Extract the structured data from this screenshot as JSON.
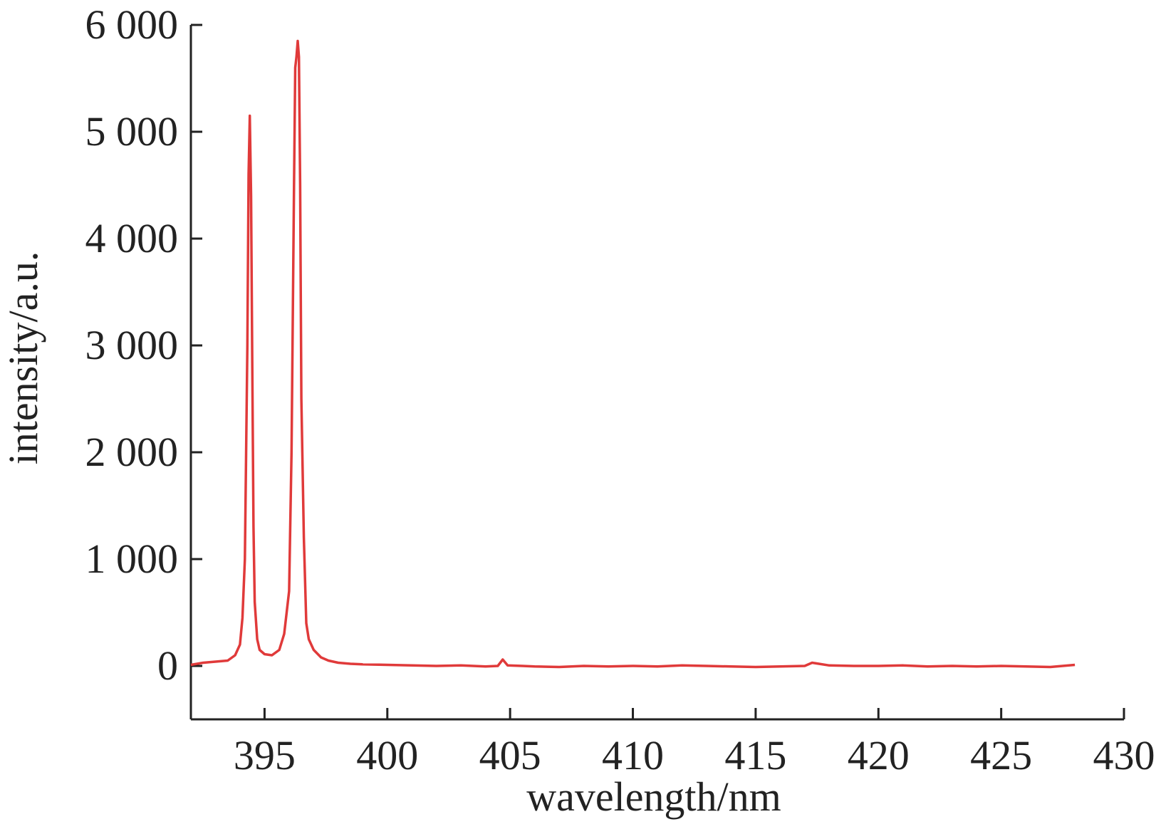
{
  "chart_data": {
    "type": "line",
    "title": "",
    "xlabel": "wavelength/nm",
    "ylabel": "intensity/a.u.",
    "xlim": [
      392,
      430
    ],
    "ylim": [
      -500,
      6000
    ],
    "xticks": [
      395,
      400,
      405,
      410,
      415,
      420,
      425,
      430
    ],
    "xtick_labels": [
      "395",
      "400",
      "405",
      "410",
      "415",
      "420",
      "425",
      "430"
    ],
    "yticks": [
      0,
      1000,
      2000,
      3000,
      4000,
      5000,
      6000
    ],
    "ytick_labels": [
      "0",
      "1 000",
      "2 000",
      "3 000",
      "4 000",
      "5 000",
      "6 000"
    ],
    "grid": false,
    "legend": "none",
    "series": [
      {
        "color": "#e03a3a",
        "x": [
          392.0,
          392.5,
          393.0,
          393.5,
          393.8,
          394.0,
          394.1,
          394.2,
          394.3,
          394.35,
          394.4,
          394.45,
          394.5,
          394.55,
          394.6,
          394.7,
          394.8,
          395.0,
          395.3,
          395.6,
          395.8,
          396.0,
          396.1,
          396.2,
          396.25,
          396.3,
          396.35,
          396.4,
          396.45,
          396.5,
          396.6,
          396.7,
          396.8,
          397.0,
          397.3,
          397.6,
          398.0,
          398.5,
          399.0,
          400.0,
          401.0,
          402.0,
          403.0,
          404.0,
          404.5,
          404.7,
          404.9,
          405.5,
          406.0,
          407.0,
          408.0,
          409.0,
          410.0,
          411.0,
          412.0,
          413.0,
          414.0,
          415.0,
          416.0,
          417.0,
          417.3,
          418.0,
          419.0,
          420.0,
          421.0,
          422.0,
          423.0,
          424.0,
          425.0,
          426.0,
          427.0,
          428.0
        ],
        "y": [
          10,
          30,
          40,
          50,
          100,
          200,
          450,
          1000,
          3000,
          4600,
          5150,
          4400,
          2800,
          1300,
          600,
          250,
          150,
          110,
          100,
          150,
          300,
          700,
          2000,
          4500,
          5600,
          5700,
          5850,
          5700,
          4500,
          2500,
          1200,
          400,
          250,
          150,
          80,
          50,
          30,
          20,
          15,
          10,
          5,
          0,
          5,
          -5,
          0,
          60,
          5,
          0,
          -5,
          -10,
          0,
          -5,
          0,
          -5,
          5,
          0,
          -5,
          -10,
          -5,
          0,
          30,
          5,
          0,
          0,
          5,
          -5,
          0,
          -5,
          0,
          -5,
          -10,
          10
        ]
      }
    ]
  }
}
